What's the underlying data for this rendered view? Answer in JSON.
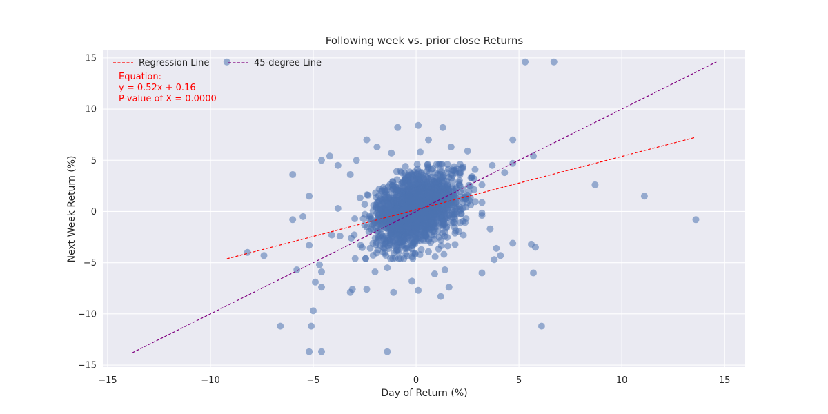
{
  "chart_data": {
    "type": "scatter",
    "title": "Following week vs. prior close Returns",
    "xlabel": "Day of Return (%)",
    "ylabel": "Next Week Return (%)",
    "xlim": [
      -15.2,
      16.0
    ],
    "ylim": [
      -15.2,
      15.8
    ],
    "x_ticks": [
      -15,
      -10,
      -5,
      0,
      5,
      10,
      15
    ],
    "y_ticks": [
      -15,
      -10,
      -5,
      0,
      5,
      10,
      15
    ],
    "x_tick_labels": [
      "−15",
      "−10",
      "−5",
      "0",
      "5",
      "10",
      "15"
    ],
    "y_tick_labels": [
      "−15",
      "−10",
      "−5",
      "0",
      "5",
      "10",
      "15"
    ],
    "grid": true,
    "legend_position": "top-left",
    "background_color": "#eaeaf2",
    "point_color": "#4c72b0",
    "series": [
      {
        "name": "Regression Line",
        "kind": "line",
        "style": "dashed",
        "color": "#ff0000",
        "x": [
          -9.2,
          13.6
        ],
        "y": [
          -4.62,
          7.25
        ]
      },
      {
        "name": "45-degree Line",
        "kind": "line",
        "style": "dashed",
        "color": "#800080",
        "x": [
          -13.8,
          14.6
        ],
        "y": [
          -13.8,
          14.6
        ]
      }
    ],
    "outliers": [
      {
        "x": -9.2,
        "y": 14.6
      },
      {
        "x": 5.3,
        "y": 14.6
      },
      {
        "x": 6.7,
        "y": 14.6
      },
      {
        "x": 0.1,
        "y": 8.4
      },
      {
        "x": -0.9,
        "y": 8.2
      },
      {
        "x": 1.3,
        "y": 8.2
      },
      {
        "x": 4.7,
        "y": 7.0
      },
      {
        "x": -2.4,
        "y": 7.0
      },
      {
        "x": 0.6,
        "y": 7.0
      },
      {
        "x": -1.9,
        "y": 6.3
      },
      {
        "x": 1.7,
        "y": 6.3
      },
      {
        "x": -4.2,
        "y": 5.4
      },
      {
        "x": -4.6,
        "y": 5.0
      },
      {
        "x": -2.9,
        "y": 5.0
      },
      {
        "x": -3.8,
        "y": 4.5
      },
      {
        "x": 5.7,
        "y": 5.4
      },
      {
        "x": 4.7,
        "y": 4.7
      },
      {
        "x": 4.3,
        "y": 3.8
      },
      {
        "x": 8.7,
        "y": 2.6
      },
      {
        "x": 11.1,
        "y": 1.5
      },
      {
        "x": 13.6,
        "y": -0.8
      },
      {
        "x": -6.0,
        "y": 3.6
      },
      {
        "x": -5.2,
        "y": 1.5
      },
      {
        "x": -6.0,
        "y": -0.8
      },
      {
        "x": -5.5,
        "y": -0.5
      },
      {
        "x": -3.8,
        "y": 0.3
      },
      {
        "x": -5.2,
        "y": -3.3
      },
      {
        "x": -8.2,
        "y": -4.0
      },
      {
        "x": -7.4,
        "y": -4.3
      },
      {
        "x": -5.8,
        "y": -5.7
      },
      {
        "x": -4.7,
        "y": -5.2
      },
      {
        "x": -4.6,
        "y": -5.9
      },
      {
        "x": -4.9,
        "y": -6.9
      },
      {
        "x": -4.6,
        "y": -7.4
      },
      {
        "x": -3.1,
        "y": -7.6
      },
      {
        "x": -3.2,
        "y": -7.9
      },
      {
        "x": -2.4,
        "y": -7.6
      },
      {
        "x": -1.1,
        "y": -7.9
      },
      {
        "x": 0.1,
        "y": -7.7
      },
      {
        "x": 1.2,
        "y": -8.3
      },
      {
        "x": 1.6,
        "y": -7.4
      },
      {
        "x": 3.2,
        "y": -6.0
      },
      {
        "x": 4.7,
        "y": -3.1
      },
      {
        "x": 5.6,
        "y": -3.2
      },
      {
        "x": 5.8,
        "y": -3.5
      },
      {
        "x": 5.7,
        "y": -6.0
      },
      {
        "x": 4.1,
        "y": -4.3
      },
      {
        "x": 3.8,
        "y": -4.7
      },
      {
        "x": -5.0,
        "y": -9.7
      },
      {
        "x": -6.6,
        "y": -11.2
      },
      {
        "x": -5.1,
        "y": -11.2
      },
      {
        "x": 6.1,
        "y": -11.2
      },
      {
        "x": -5.2,
        "y": -13.7
      },
      {
        "x": -4.6,
        "y": -13.7
      },
      {
        "x": -1.4,
        "y": -13.7
      },
      {
        "x": 0.2,
        "y": 5.8
      },
      {
        "x": -1.2,
        "y": 5.7
      },
      {
        "x": 2.5,
        "y": 5.9
      },
      {
        "x": -3.2,
        "y": 3.6
      },
      {
        "x": 3.7,
        "y": 4.5
      },
      {
        "x": -4.1,
        "y": -2.3
      },
      {
        "x": -3.7,
        "y": -2.4
      },
      {
        "x": 2.3,
        "y": -2.3
      },
      {
        "x": 3.6,
        "y": -1.7
      },
      {
        "x": 3.9,
        "y": -3.6
      },
      {
        "x": -2.0,
        "y": -5.9
      },
      {
        "x": -1.4,
        "y": -5.5
      },
      {
        "x": 1.4,
        "y": -5.7
      },
      {
        "x": 0.9,
        "y": -6.1
      },
      {
        "x": -0.2,
        "y": -6.8
      },
      {
        "x": 2.7,
        "y": 3.3
      },
      {
        "x": -2.7,
        "y": -3.3
      }
    ],
    "cluster": {
      "n": 1800,
      "x_mean": 0.0,
      "x_sd": 1.05,
      "y_mean": 0.2,
      "y_sd": 1.75,
      "corr": 0.35,
      "seed": 7
    }
  },
  "legend": {
    "regression_label": "Regression Line",
    "diagonal_label": "45-degree Line"
  },
  "annotation": {
    "line1": "Equation:",
    "line2": "y = 0.52x + 0.16",
    "line3": "P-value of X = 0.0000",
    "color": "#ff0000"
  }
}
